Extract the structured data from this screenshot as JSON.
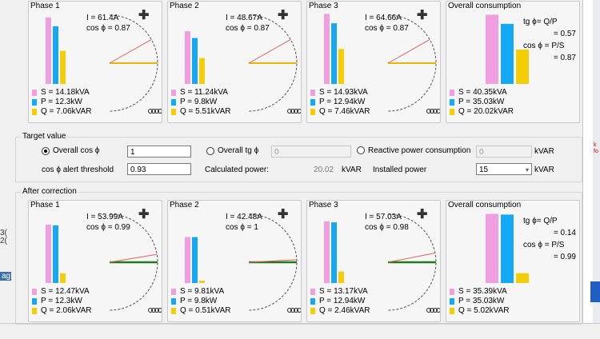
{
  "background": {
    "left_texts": [
      "3(",
      "2("
    ],
    "left_tag": "ag",
    "right_texts": [
      "k",
      "fo"
    ]
  },
  "top_panels": [
    {
      "title": "Phase 1",
      "current": "I = 61.4A",
      "cos": "cos ϕ = 0.87",
      "s": "S = 14.18kVA",
      "p": "P = 12.3kW",
      "q": "Q = 7.06kVAR",
      "s_val": 14.18,
      "p_val": 12.3,
      "q_val": 7.06,
      "phi_deg": 29.5
    },
    {
      "title": "Phase 2",
      "current": "I = 48.67A",
      "cos": "cos ϕ = 0.87",
      "s": "S = 11.24kVA",
      "p": "P = 9.8kW",
      "q": "Q = 5.51kVAR",
      "s_val": 11.24,
      "p_val": 9.8,
      "q_val": 5.51,
      "phi_deg": 29.5
    },
    {
      "title": "Phase 3",
      "current": "I = 64.66A",
      "cos": "cos ϕ = 0.87",
      "s": "S = 14.93kVA",
      "p": "P = 12.94kW",
      "q": "Q = 7.46kVAR",
      "s_val": 14.93,
      "p_val": 12.94,
      "q_val": 7.46,
      "phi_deg": 29.5
    }
  ],
  "top_overall": {
    "title": "Overall consumption",
    "s": "S = 40.35kVA",
    "p": "P = 35.03kW",
    "q": "Q = 20.02kVAR",
    "s_val": 40.35,
    "p_val": 35.03,
    "q_val": 20.02,
    "tg_formula": "tg ϕ= Q/P",
    "tg_value": "= 0.57",
    "cos_formula": "cos ϕ = P/S",
    "cos_value": "= 0.87"
  },
  "target": {
    "title": "Target value",
    "overall_cos_label": "Overall cos ϕ",
    "overall_cos_value": "1",
    "overall_tg_label": "Overall tg ϕ",
    "overall_tg_value": "0",
    "reactive_label": "Reactive power consumption",
    "reactive_value": "0",
    "kvar_unit": "kVAR",
    "alert_label": "cos ϕ alert threshold",
    "alert_value": "0.93",
    "calc_label": "Calculated power:",
    "calc_value": "20.02",
    "calc_unit": "kVAR",
    "installed_label": "Installed power",
    "installed_value": "15",
    "installed_unit": "kVAR"
  },
  "after": {
    "title": "After correction",
    "panels": [
      {
        "title": "Phase 1",
        "current": "I = 53.99A",
        "cos": "cos ϕ = 0.99",
        "s": "S = 12.47kVA",
        "p": "P = 12.3kW",
        "q": "Q = 2.06kVAR",
        "s_val": 12.47,
        "p_val": 12.3,
        "q_val": 2.06,
        "phi_deg": 9.5
      },
      {
        "title": "Phase 2",
        "current": "I = 42.48A",
        "cos": "cos ϕ = 1",
        "s": "S = 9.81kVA",
        "p": "P = 9.8kW",
        "q": "Q = 0.51kVAR",
        "s_val": 9.81,
        "p_val": 9.8,
        "q_val": 0.51,
        "phi_deg": 3
      },
      {
        "title": "Phase 3",
        "current": "I = 57.03A",
        "cos": "cos ϕ = 0.98",
        "s": "S = 13.17kVA",
        "p": "P = 12.94kW",
        "q": "Q = 2.46kVAR",
        "s_val": 13.17,
        "p_val": 12.94,
        "q_val": 2.46,
        "phi_deg": 11
      }
    ],
    "overall": {
      "title": "Overall consumption",
      "s": "S = 35.39kVA",
      "p": "P = 35.03kW",
      "q": "Q = 5.02kVAR",
      "s_val": 35.39,
      "p_val": 35.03,
      "q_val": 5.02,
      "tg_formula": "tg ϕ= Q/P",
      "tg_value": "= 0.14",
      "cos_formula": "cos ϕ = P/S",
      "cos_value": "= 0.99"
    }
  },
  "colors": {
    "s": "#ef9fe0",
    "p": "#16a9f3",
    "q": "#f4cd05",
    "current_line": "#e0605a",
    "reference_line_before": "#f0b400",
    "reference_line_after": "#1e7b1e"
  }
}
